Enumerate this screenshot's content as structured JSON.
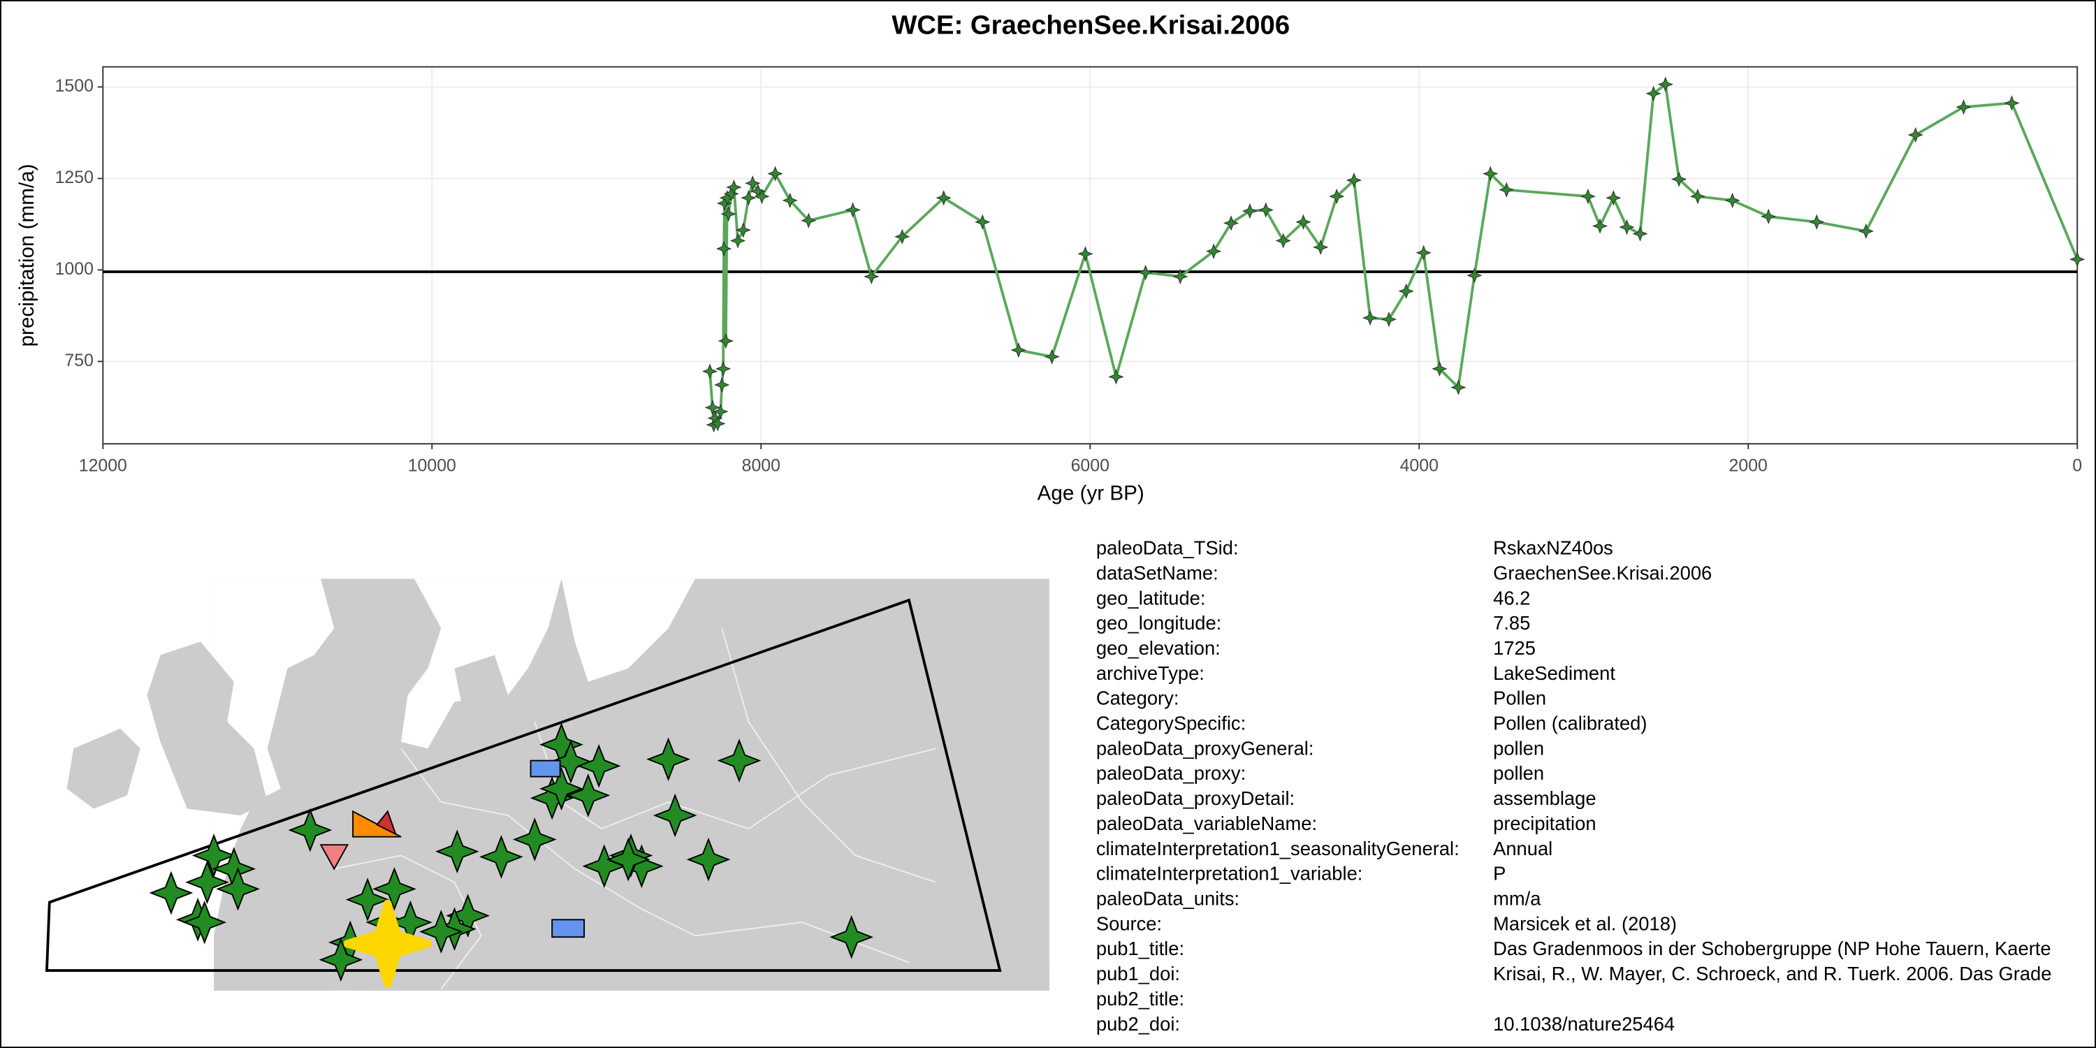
{
  "chart_data": {
    "type": "line",
    "title": "WCE: GraechenSee.Krisai.2006",
    "x_label": "Age (yr BP)",
    "y_label": "precipitation (mm/a)",
    "xlim": [
      12000,
      0
    ],
    "xticks": [
      12000,
      10000,
      8000,
      6000,
      4000,
      2000,
      0
    ],
    "ylim": [
      525,
      1555
    ],
    "yticks": [
      750,
      1000,
      1250,
      1500
    ],
    "grid": true,
    "reference_line": 995,
    "x": [
      8311,
      8295,
      8287,
      8279,
      8263,
      8246,
      8238,
      8230,
      8226,
      8222,
      8214,
      8206,
      8198,
      8181,
      8165,
      8141,
      8108,
      8076,
      8051,
      8019,
      7995,
      7914,
      7824,
      7711,
      7442,
      7329,
      7142,
      6890,
      6654,
      6435,
      6232,
      6029,
      5842,
      5663,
      5452,
      5249,
      5143,
      5029,
      4932,
      4826,
      4704,
      4599,
      4501,
      4396,
      4298,
      4184,
      4079,
      3973,
      3876,
      3762,
      3664,
      3567,
      3469,
      2974,
      2901,
      2819,
      2738,
      2657,
      2576,
      2503,
      2421,
      2307,
      2096,
      1877,
      1584,
      1284,
      983,
      691,
      398,
      0
    ],
    "series": [
      {
        "name": "precipitation",
        "color": "#5aa85a",
        "marker_color": "#2e8b2e",
        "values": [
          723,
          624,
          577,
          595,
          580,
          613,
          686,
          730,
          1058,
          1182,
          806,
          1197,
          1153,
          1208,
          1226,
          1080,
          1109,
          1197,
          1237,
          1215,
          1201,
          1263,
          1190,
          1135,
          1164,
          982,
          1091,
          1197,
          1131,
          781,
          763,
          1044,
          708,
          993,
          982,
          1051,
          1128,
          1161,
          1164,
          1080,
          1131,
          1062,
          1201,
          1245,
          869,
          865,
          942,
          1047,
          730,
          679,
          985,
          1263,
          1219,
          1201,
          1120,
          1197,
          1117,
          1099,
          1482,
          1507,
          1248,
          1201,
          1190,
          1146,
          1131,
          1106,
          1369,
          1445,
          1456,
          1029
        ]
      }
    ]
  },
  "metadata": {
    "rows": [
      {
        "key": "paleoData_TSid:",
        "value": "RskaxNZ40os"
      },
      {
        "key": "dataSetName:",
        "value": "GraechenSee.Krisai.2006"
      },
      {
        "key": "geo_latitude:",
        "value": "46.2"
      },
      {
        "key": "geo_longitude:",
        "value": "7.85"
      },
      {
        "key": "geo_elevation:",
        "value": "1725"
      },
      {
        "key": "archiveType:",
        "value": "LakeSediment"
      },
      {
        "key": "Category:",
        "value": "Pollen"
      },
      {
        "key": "CategorySpecific:",
        "value": "Pollen (calibrated)"
      },
      {
        "key": "paleoData_proxyGeneral:",
        "value": "pollen"
      },
      {
        "key": "paleoData_proxy:",
        "value": "pollen"
      },
      {
        "key": "paleoData_proxyDetail:",
        "value": "assemblage"
      },
      {
        "key": "paleoData_variableName:",
        "value": "precipitation"
      },
      {
        "key": "climateInterpretation1_seasonalityGeneral:",
        "value": "Annual"
      },
      {
        "key": "climateInterpretation1_variable:",
        "value": "P"
      },
      {
        "key": "paleoData_units:",
        "value": "mm/a"
      },
      {
        "key": "Source:",
        "value": "Marsicek et al. (2018)"
      },
      {
        "key": "pub1_title:",
        "value": "Das Gradenmoos in der Schobergruppe (NP Hohe Tauern, Kaerte"
      },
      {
        "key": "pub1_doi:",
        "value": "Krisai, R., W. Mayer, C. Schroeck, and R. Tuerk. 2006. Das Grade"
      },
      {
        "key": "pub2_title:"
      },
      {
        "key": "pub2_doi:",
        "value": "10.1038/nature25464"
      }
    ]
  }
}
